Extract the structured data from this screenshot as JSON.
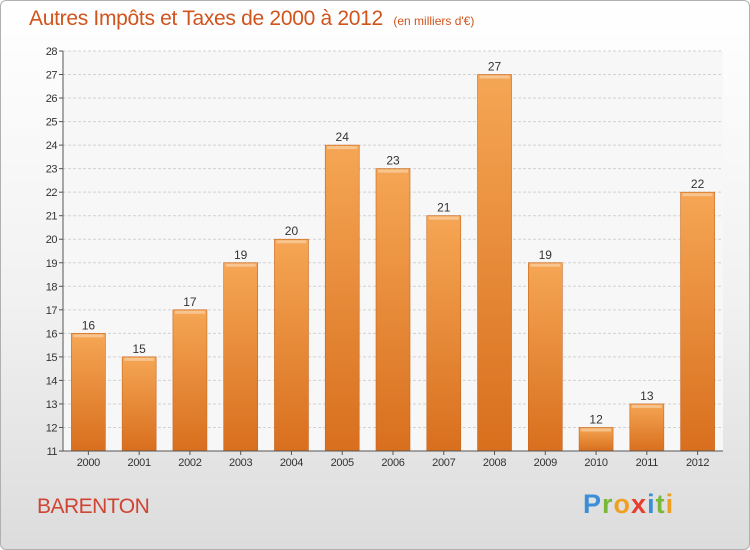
{
  "chart_data": {
    "type": "bar",
    "title": "Autres Impôts et Taxes de 2000 à 2012",
    "unit_label": "(en milliers d'€)",
    "categories": [
      "2000",
      "2001",
      "2002",
      "2003",
      "2004",
      "2005",
      "2006",
      "2007",
      "2008",
      "2009",
      "2010",
      "2011",
      "2012"
    ],
    "values": [
      16,
      15,
      17,
      19,
      20,
      24,
      23,
      21,
      27,
      19,
      12,
      13,
      22
    ],
    "ylim": [
      11,
      28
    ],
    "yticks": [
      11,
      12,
      13,
      14,
      15,
      16,
      17,
      18,
      19,
      20,
      21,
      22,
      23,
      24,
      25,
      26,
      27,
      28
    ],
    "grid": true,
    "bar_color": "#f0902e",
    "title_color": "#d0541c"
  },
  "commune": "BARENTON",
  "logo": {
    "letters": [
      "P",
      "r",
      "o",
      "x",
      "i",
      "t",
      "i"
    ],
    "colors": [
      "#3a8fd8",
      "#7ab83a",
      "#f0a020",
      "#e83c2c",
      "#3a8fd8",
      "#7ab83a",
      "#f0a020"
    ]
  }
}
